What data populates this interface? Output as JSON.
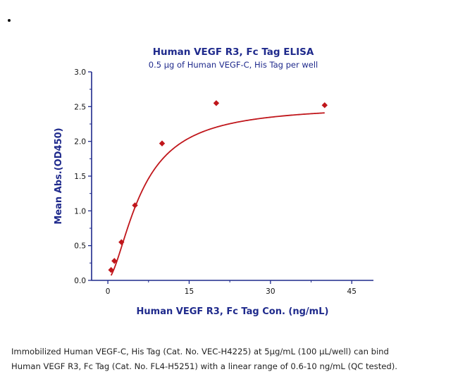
{
  "chart_data": {
    "type": "scatter",
    "title": "Human VEGF R3, Fc Tag ELISA",
    "subtitle": "0.5 µg of Human VEGF-C, His Tag per well",
    "xlabel": "Human VEGF R3, Fc Tag Con. (ng/mL)",
    "ylabel": "Mean Abs.(OD450)",
    "xlim": [
      -3,
      49
    ],
    "ylim": [
      0,
      3.0
    ],
    "xticks": [
      0,
      15,
      30,
      45
    ],
    "xtick_labels": [
      "0",
      "15",
      "30",
      "45"
    ],
    "yticks": [
      0.0,
      0.5,
      1.0,
      1.5,
      2.0,
      2.5,
      3.0
    ],
    "ytick_labels": [
      "0.0",
      "0.5",
      "1.0",
      "1.5",
      "2.0",
      "2.5",
      "3.0"
    ],
    "grid": false,
    "legend": "none",
    "series": [
      {
        "x": [
          0.6,
          1.2,
          2.5,
          5.0,
          10.0,
          20.0,
          40.0
        ],
        "y": [
          0.15,
          0.28,
          0.55,
          1.08,
          1.97,
          2.55,
          2.52
        ],
        "marker": "diamond",
        "color": "#c0161b",
        "fit_curve": true
      }
    ]
  },
  "caption": {
    "line1": "Immobilized Human VEGF-C, His Tag (Cat. No. VEC-H4225) at 5μg/mL (100 μL/well) can bind",
    "line2": "Human VEGF R3, Fc Tag (Cat. No. FL4-H5251) with a linear range of 0.6-10 ng/mL (QC tested)."
  },
  "colors": {
    "title": "#1f2a8c",
    "axis": "#1f2a8c",
    "data": "#c0161b"
  }
}
